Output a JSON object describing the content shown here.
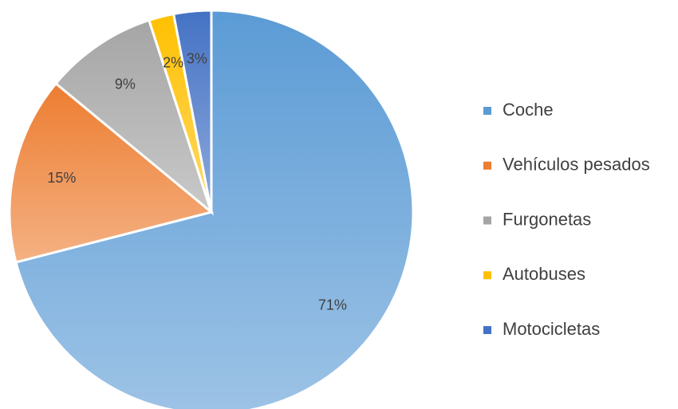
{
  "chart_data": {
    "type": "pie",
    "categories": [
      "Coche",
      "Vehículos pesados",
      "Furgonetas",
      "Autobuses",
      "Motocicletas"
    ],
    "values": [
      71,
      15,
      9,
      2,
      3
    ],
    "value_labels": [
      "71%",
      "15%",
      "9%",
      "2%",
      "3%"
    ],
    "colors": [
      "#5b9bd5",
      "#ed7d31",
      "#a5a5a5",
      "#ffc000",
      "#4472c4"
    ],
    "legend": "right"
  }
}
